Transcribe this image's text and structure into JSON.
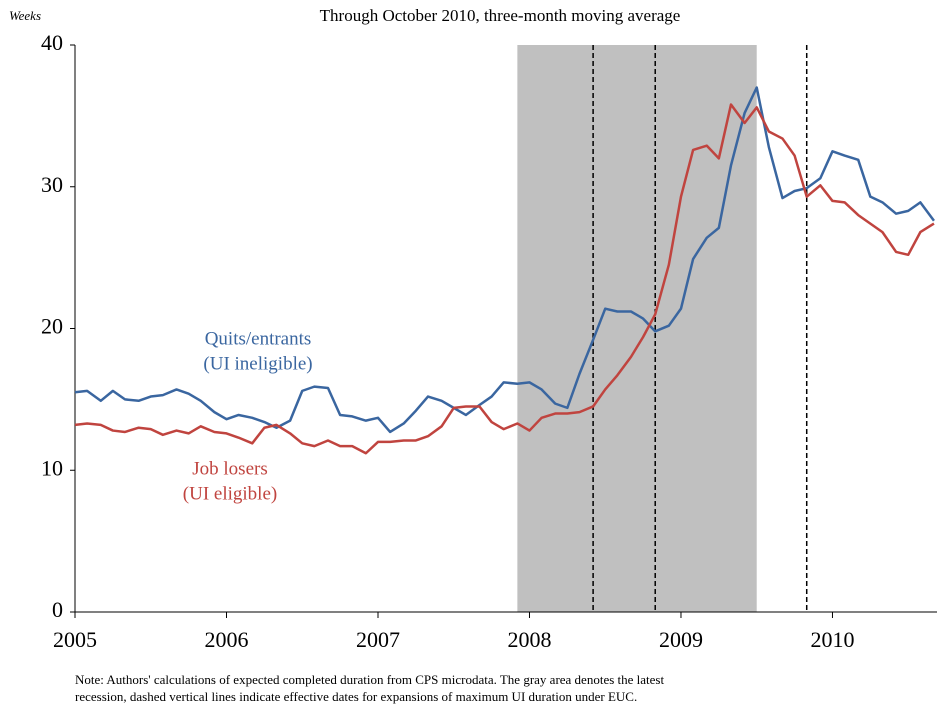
{
  "chart_data": {
    "type": "line",
    "subtitle": "Through October 2010, three-month moving average",
    "y_label": "Weeks",
    "note": [
      "Note:  Authors' calculations of expected completed duration from CPS  microdata.  The gray area denotes the latest",
      "recession, dashed vertical lines indicate effective dates for expansions of maximum  UI duration under EUC."
    ],
    "x": [
      2005,
      2005.08,
      2005.17,
      2005.25,
      2005.33,
      2005.42,
      2005.5,
      2005.58,
      2005.67,
      2005.75,
      2005.83,
      2005.92,
      2006,
      2006.08,
      2006.17,
      2006.25,
      2006.33,
      2006.42,
      2006.5,
      2006.58,
      2006.67,
      2006.75,
      2006.83,
      2006.92,
      2007,
      2007.08,
      2007.17,
      2007.25,
      2007.33,
      2007.42,
      2007.5,
      2007.58,
      2007.67,
      2007.75,
      2007.83,
      2007.92,
      2008,
      2008.08,
      2008.17,
      2008.25,
      2008.33,
      2008.42,
      2008.5,
      2008.58,
      2008.67,
      2008.75,
      2008.83,
      2008.92,
      2009,
      2009.08,
      2009.17,
      2009.25,
      2009.33,
      2009.42,
      2009.5,
      2009.58,
      2009.67,
      2009.75,
      2009.83,
      2009.92,
      2010,
      2010.08,
      2010.17,
      2010.25,
      2010.33,
      2010.42,
      2010.5,
      2010.58,
      2010.67
    ],
    "series": [
      {
        "name": "Quits/entrants",
        "subname": "(UI ineligible)",
        "color": "#3a66a0",
        "values": [
          15.5,
          15.6,
          14.9,
          15.6,
          15.0,
          14.9,
          15.2,
          15.3,
          15.7,
          15.4,
          14.9,
          14.1,
          13.6,
          13.9,
          13.7,
          13.4,
          13.0,
          13.5,
          15.6,
          15.9,
          15.8,
          13.9,
          13.8,
          13.5,
          13.7,
          12.7,
          13.3,
          14.2,
          15.2,
          14.9,
          14.4,
          13.9,
          14.6,
          15.2,
          16.2,
          16.1,
          16.2,
          15.7,
          14.7,
          14.4,
          16.8,
          19.2,
          21.4,
          21.2,
          21.2,
          20.7,
          19.8,
          20.2,
          21.4,
          24.9,
          26.4,
          27.1,
          31.5,
          35.2,
          37.0,
          32.8,
          29.2,
          29.7,
          29.9,
          30.6,
          32.5,
          32.2,
          31.9,
          29.3,
          28.9,
          28.1,
          28.3,
          28.9,
          27.6
        ]
      },
      {
        "name": "Job losers",
        "subname": "(UI eligible)",
        "color": "#c0443f",
        "values": [
          13.2,
          13.3,
          13.2,
          12.8,
          12.7,
          13.0,
          12.9,
          12.5,
          12.8,
          12.6,
          13.1,
          12.7,
          12.6,
          12.3,
          11.9,
          13.0,
          13.2,
          12.6,
          11.9,
          11.7,
          12.1,
          11.7,
          11.7,
          11.2,
          12.0,
          12.0,
          12.1,
          12.1,
          12.4,
          13.1,
          14.4,
          14.5,
          14.5,
          13.4,
          12.9,
          13.3,
          12.8,
          13.7,
          14.0,
          14.0,
          14.1,
          14.5,
          15.7,
          16.7,
          18.0,
          19.4,
          21.0,
          24.5,
          29.3,
          32.6,
          32.9,
          32.0,
          35.8,
          34.5,
          35.6,
          33.9,
          33.4,
          32.2,
          29.3,
          30.1,
          29.0,
          28.9,
          28.0,
          27.4,
          26.8,
          25.4,
          25.2,
          26.8,
          27.4
        ]
      }
    ],
    "recession": [
      2007.92,
      2009.5
    ],
    "recession_color": "#c0c0c0",
    "vlines": [
      2008.42,
      2008.83,
      2009.83
    ],
    "xlim": [
      2005,
      2010.69
    ],
    "xticks": [
      2005,
      2006,
      2007,
      2008,
      2009,
      2010
    ],
    "ylim": [
      0,
      40
    ],
    "yticks": [
      0,
      10,
      20,
      30,
      40
    ],
    "grid": false
  }
}
